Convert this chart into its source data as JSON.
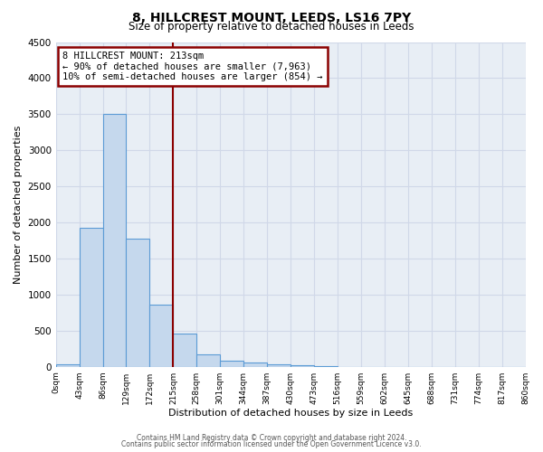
{
  "title": "8, HILLCREST MOUNT, LEEDS, LS16 7PY",
  "subtitle": "Size of property relative to detached houses in Leeds",
  "xlabel": "Distribution of detached houses by size in Leeds",
  "ylabel": "Number of detached properties",
  "bar_edges": [
    0,
    43,
    86,
    129,
    172,
    215,
    258,
    301,
    344,
    387,
    430,
    473,
    516,
    559,
    602,
    645,
    688,
    731,
    774,
    817,
    860
  ],
  "bar_heights": [
    40,
    1920,
    3500,
    1780,
    860,
    460,
    175,
    90,
    55,
    30,
    20,
    5,
    2,
    1,
    1,
    1,
    0,
    0,
    0,
    0
  ],
  "bar_color": "#c5d8ed",
  "bar_edge_color": "#5b9bd5",
  "vline_x": 215,
  "vline_color": "#8b0000",
  "ylim": [
    0,
    4500
  ],
  "yticks": [
    0,
    500,
    1000,
    1500,
    2000,
    2500,
    3000,
    3500,
    4000,
    4500
  ],
  "x_tick_labels": [
    "0sqm",
    "43sqm",
    "86sqm",
    "129sqm",
    "172sqm",
    "215sqm",
    "258sqm",
    "301sqm",
    "344sqm",
    "387sqm",
    "430sqm",
    "473sqm",
    "516sqm",
    "559sqm",
    "602sqm",
    "645sqm",
    "688sqm",
    "731sqm",
    "774sqm",
    "817sqm",
    "860sqm"
  ],
  "annotation_title": "8 HILLCREST MOUNT: 213sqm",
  "annotation_line1": "← 90% of detached houses are smaller (7,963)",
  "annotation_line2": "10% of semi-detached houses are larger (854) →",
  "annotation_box_color": "#8b0000",
  "grid_color": "#d0d8e8",
  "background_color": "#e8eef5",
  "fig_background_color": "#ffffff",
  "footer1": "Contains HM Land Registry data © Crown copyright and database right 2024.",
  "footer2": "Contains public sector information licensed under the Open Government Licence v3.0."
}
